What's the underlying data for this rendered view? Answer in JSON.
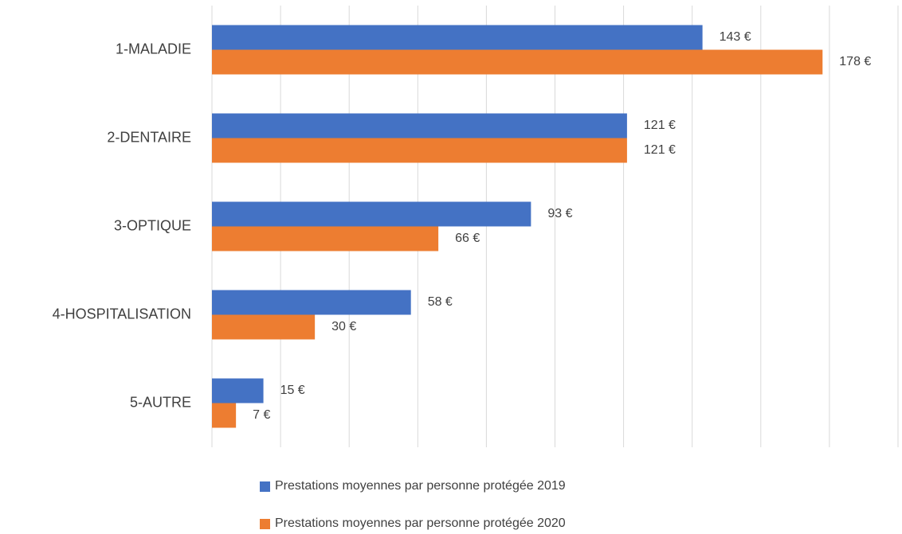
{
  "chart_data": {
    "type": "hbar",
    "categories": [
      "1-MALADIE",
      "2-DENTAIRE",
      "3-OPTIQUE",
      "4-HOSPITALISATION",
      "5-AUTRE"
    ],
    "series": [
      {
        "name": "Prestations moyennes par personne protégée 2019",
        "color": "#4472c4",
        "values": [
          143,
          121,
          93,
          58,
          15
        ],
        "value_labels": [
          "143 €",
          "121 €",
          "93 €",
          "58 €",
          "15 €"
        ]
      },
      {
        "name": "Prestations moyennes par personne protégée 2020",
        "color": "#ed7d31",
        "values": [
          178,
          121,
          66,
          30,
          7
        ],
        "value_labels": [
          "178 €",
          "121 €",
          "66 €",
          "30 €",
          "7 €"
        ]
      }
    ],
    "xlim": [
      0,
      200
    ],
    "xticks": [
      0,
      20,
      40,
      60,
      80,
      100,
      120,
      140,
      160,
      180,
      200
    ],
    "grid": true,
    "legend": "bottom"
  }
}
